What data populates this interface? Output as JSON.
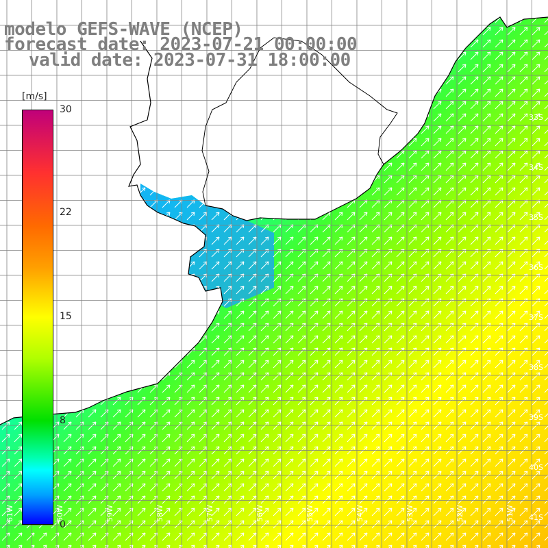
{
  "title": {
    "line1": "modelo GEFS-WAVE (NCEP)",
    "line2": "forecast date: 2023-07-21 00:00:00",
    "line3": "valid date: 2023-07-31 18:00:00"
  },
  "colorbar": {
    "unit": "[m/s]",
    "ticks": [
      "30",
      "22",
      "15",
      "8",
      "0"
    ],
    "colors": [
      "#c0007a",
      "#ff3030",
      "#ff9f00",
      "#ffff00",
      "#00e000",
      "#00ffff",
      "#0000ff"
    ]
  },
  "map": {
    "lon_labels": [
      "61W",
      "60W",
      "59W",
      "58W",
      "57W",
      "56W",
      "55W",
      "54W",
      "53W",
      "52W",
      "51W"
    ],
    "lat_labels": [
      "33S",
      "34S",
      "35S",
      "36S",
      "37S",
      "38S",
      "39S",
      "40S",
      "41S"
    ],
    "lon_range": [
      -61.2,
      -50.4
    ],
    "lat_range": [
      -41.4,
      -31.6
    ],
    "land_color": "#ffffff",
    "coast_color": "#000000",
    "grid_color": "#808080",
    "arrow_color": "#ffffff",
    "vector_field": "wind direction from south-west to north-east"
  }
}
